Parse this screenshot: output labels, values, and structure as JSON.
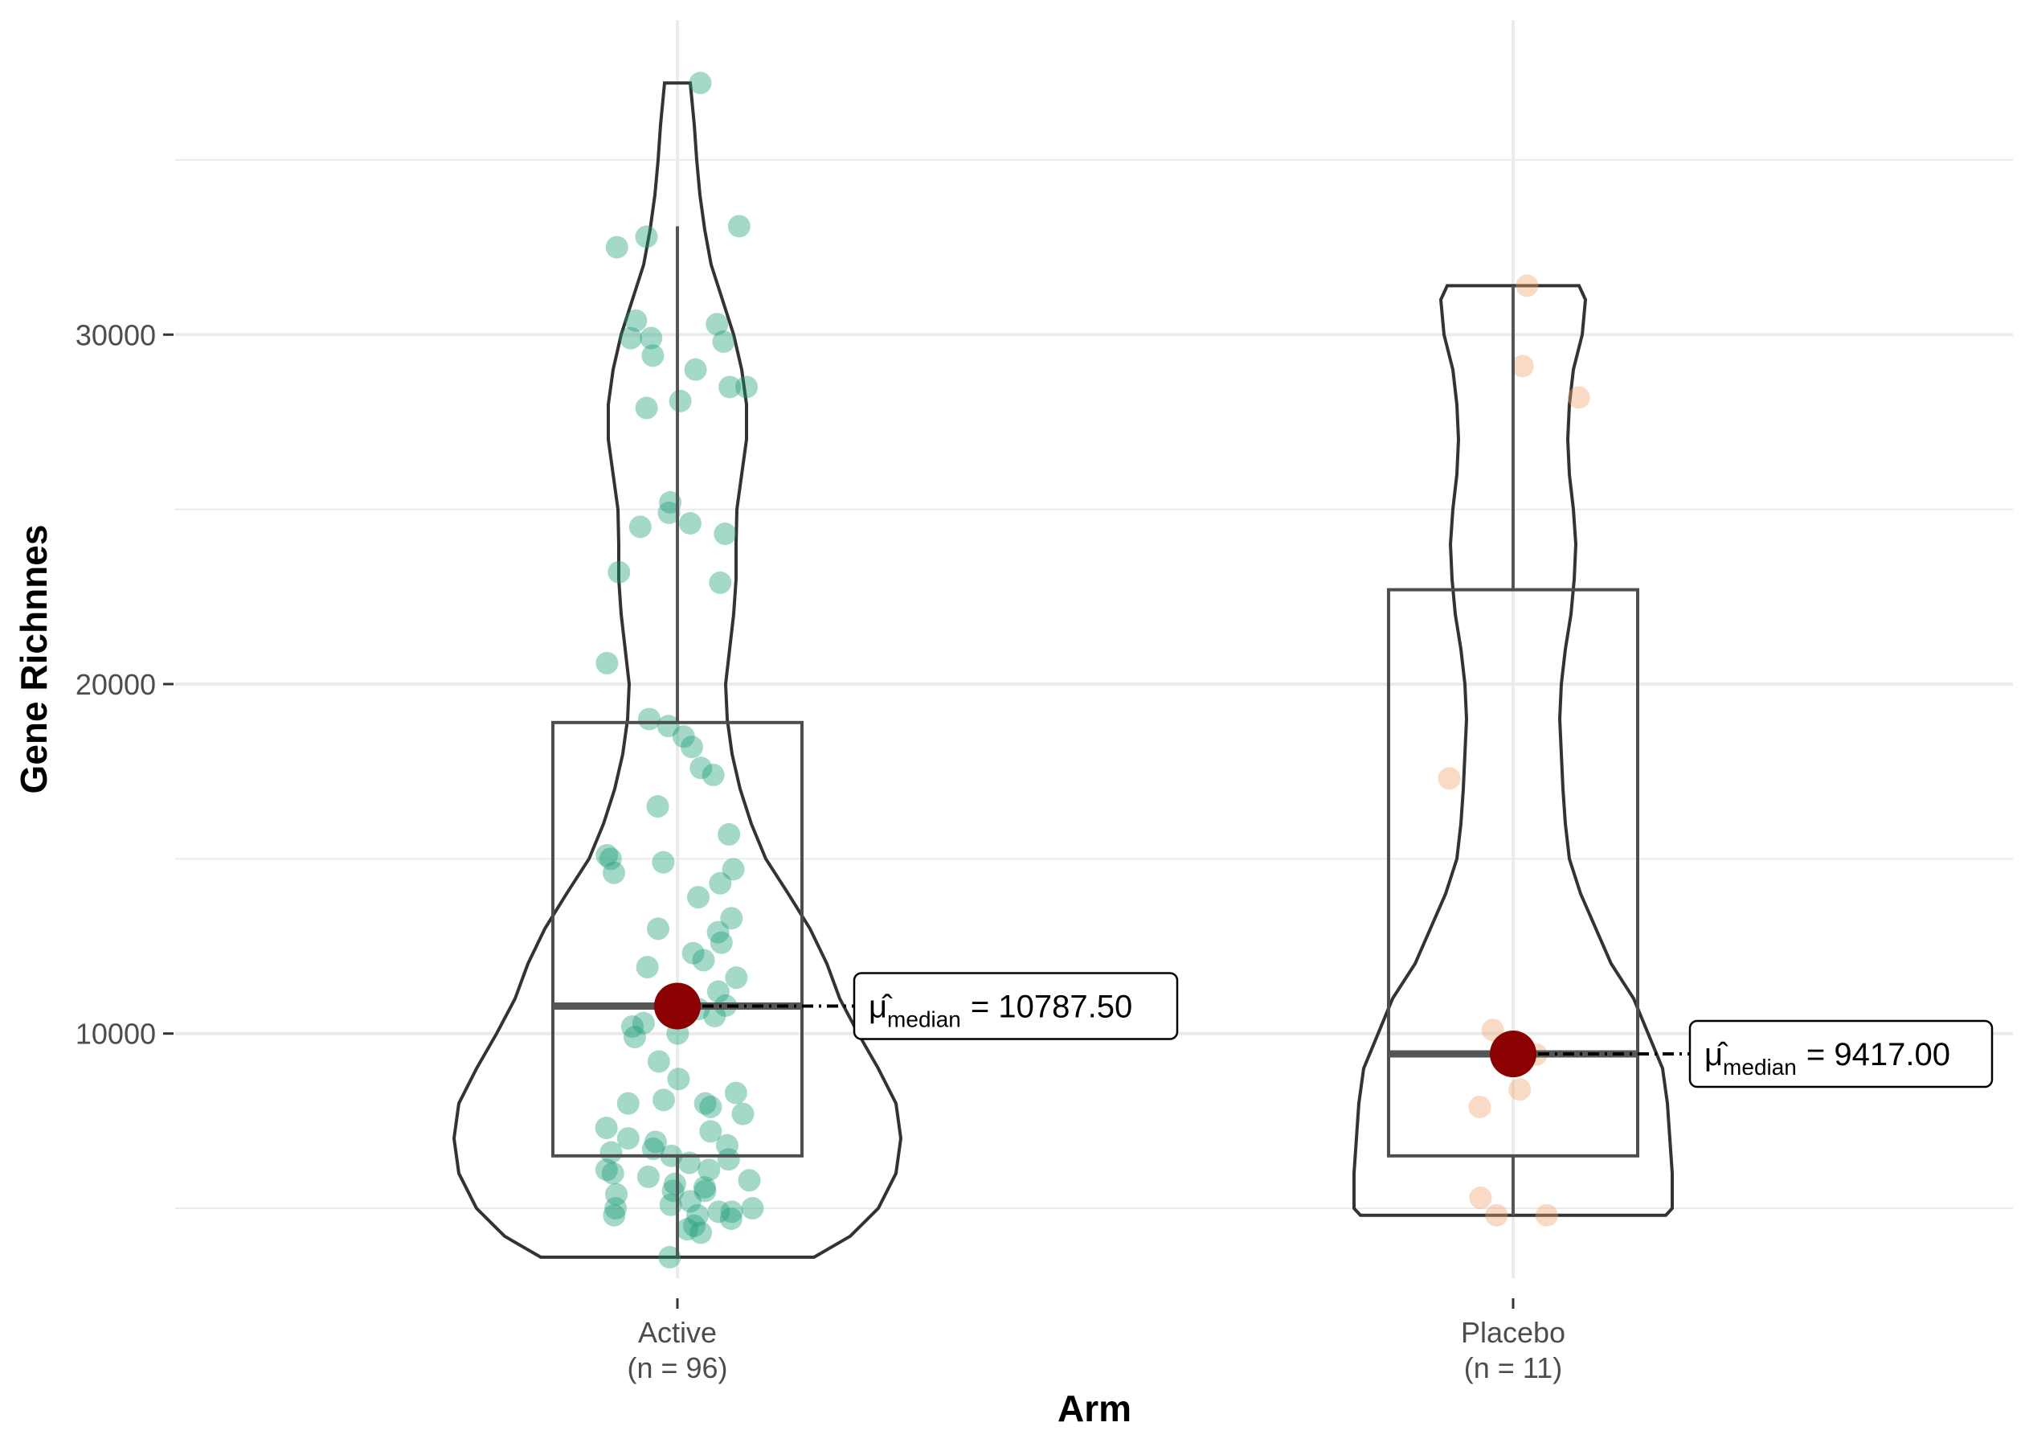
{
  "chart_data": {
    "type": "violin-box-jitter",
    "xlabel": "Arm",
    "ylabel": "Gene Richnnes",
    "y_ticks": [
      10000,
      20000,
      30000
    ],
    "ylim": [
      3000,
      39000
    ],
    "grid": true,
    "groups": [
      {
        "name": "Active",
        "n_label": "(n = 96)",
        "color": "#1B9E77",
        "box": {
          "q1": 6500,
          "median": 10787.5,
          "q3": 18900,
          "whisker_low": 3600,
          "whisker_high": 33100
        },
        "violin_range": [
          3600,
          37200
        ],
        "median_label_var": "median",
        "median_label_value": "= 10787.50",
        "points": [
          37200,
          33100,
          32800,
          32500,
          30400,
          30300,
          29900,
          29900,
          29800,
          29400,
          29000,
          28500,
          28500,
          28100,
          27900,
          25200,
          24900,
          24600,
          24500,
          24300,
          23200,
          22900,
          20600,
          19000,
          18800,
          18500,
          18200,
          17600,
          17400,
          16500,
          15700,
          15100,
          15000,
          14900,
          14700,
          14600,
          14300,
          13900,
          13300,
          13000,
          12900,
          12600,
          12300,
          12100,
          11900,
          11600,
          11200,
          10800,
          10700,
          10600,
          10500,
          10300,
          10200,
          10000,
          9900,
          9200,
          8700,
          8300,
          8100,
          8000,
          8000,
          7900,
          7700,
          7300,
          7200,
          7000,
          6900,
          6800,
          6700,
          6600,
          6500,
          6400,
          6300,
          6100,
          6000,
          5900,
          5800,
          5700,
          5600,
          5500,
          5500,
          5400,
          5200,
          5100,
          5000,
          5000,
          4900,
          4900,
          4800,
          4800,
          4700,
          4500,
          4400,
          4300,
          3600,
          6100
        ]
      },
      {
        "name": "Placebo",
        "n_label": "(n = 11)",
        "color": "#F1A26B",
        "box": {
          "q1": 6500,
          "median": 9417.0,
          "q3": 22700,
          "whisker_low": 4800,
          "whisker_high": 31400
        },
        "violin_range": [
          4800,
          31400
        ],
        "median_label_var": "median",
        "median_label_value": "= 9417.00",
        "points": [
          31400,
          29100,
          28200,
          17300,
          10100,
          9400,
          8400,
          7900,
          5300,
          4800,
          4800
        ]
      }
    ]
  }
}
